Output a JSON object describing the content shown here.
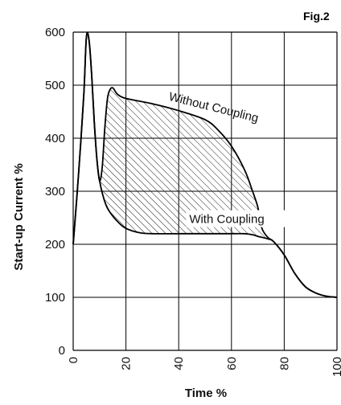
{
  "chart_data": {
    "type": "line",
    "figure_label": "Fig.2",
    "xlabel": "Time %",
    "ylabel": "Start-up Current %",
    "xlim": [
      0,
      100
    ],
    "ylim": [
      0,
      600
    ],
    "x_ticks": [
      "0",
      "20",
      "40",
      "60",
      "80",
      "100"
    ],
    "y_ticks": [
      "0",
      "100",
      "200",
      "300",
      "400",
      "500",
      "600"
    ],
    "grid": true,
    "series": [
      {
        "name": "Without Coupling",
        "points": [
          [
            0,
            200
          ],
          [
            2,
            330
          ],
          [
            4,
            480
          ],
          [
            5,
            590
          ],
          [
            6,
            585
          ],
          [
            7,
            520
          ],
          [
            8,
            430
          ],
          [
            9,
            360
          ],
          [
            10,
            320
          ],
          [
            11,
            345
          ],
          [
            12,
            420
          ],
          [
            13,
            475
          ],
          [
            14,
            492
          ],
          [
            15,
            495
          ],
          [
            16,
            488
          ],
          [
            17,
            482
          ],
          [
            20,
            475
          ],
          [
            30,
            465
          ],
          [
            40,
            452
          ],
          [
            50,
            435
          ],
          [
            55,
            415
          ],
          [
            60,
            385
          ],
          [
            65,
            340
          ],
          [
            68,
            300
          ],
          [
            70,
            270
          ],
          [
            71,
            240
          ],
          [
            72,
            225
          ],
          [
            74,
            212
          ],
          [
            76,
            205
          ],
          [
            80,
            180
          ],
          [
            84,
            145
          ],
          [
            88,
            120
          ],
          [
            92,
            108
          ],
          [
            96,
            102
          ],
          [
            100,
            100
          ]
        ]
      },
      {
        "name": "With Coupling",
        "points": [
          [
            0,
            200
          ],
          [
            2,
            330
          ],
          [
            4,
            480
          ],
          [
            5,
            590
          ],
          [
            6,
            585
          ],
          [
            7,
            520
          ],
          [
            8,
            430
          ],
          [
            9,
            360
          ],
          [
            10,
            320
          ],
          [
            12,
            280
          ],
          [
            14,
            260
          ],
          [
            17,
            242
          ],
          [
            20,
            230
          ],
          [
            25,
            222
          ],
          [
            30,
            220
          ],
          [
            40,
            220
          ],
          [
            50,
            220
          ],
          [
            60,
            220
          ],
          [
            65,
            220
          ],
          [
            68,
            218
          ],
          [
            70,
            215
          ],
          [
            74,
            210
          ],
          [
            76,
            205
          ],
          [
            80,
            180
          ],
          [
            84,
            145
          ],
          [
            88,
            120
          ],
          [
            92,
            108
          ],
          [
            96,
            102
          ],
          [
            100,
            100
          ]
        ]
      }
    ],
    "annotations": [
      {
        "text": "Without Coupling",
        "x": 36,
        "y": 472,
        "rotate_deg": 14
      },
      {
        "text": "With Coupling",
        "x": 44,
        "y": 240,
        "rotate_deg": 0
      }
    ],
    "shaded_region": "between Without Coupling and With Coupling, hatched"
  }
}
